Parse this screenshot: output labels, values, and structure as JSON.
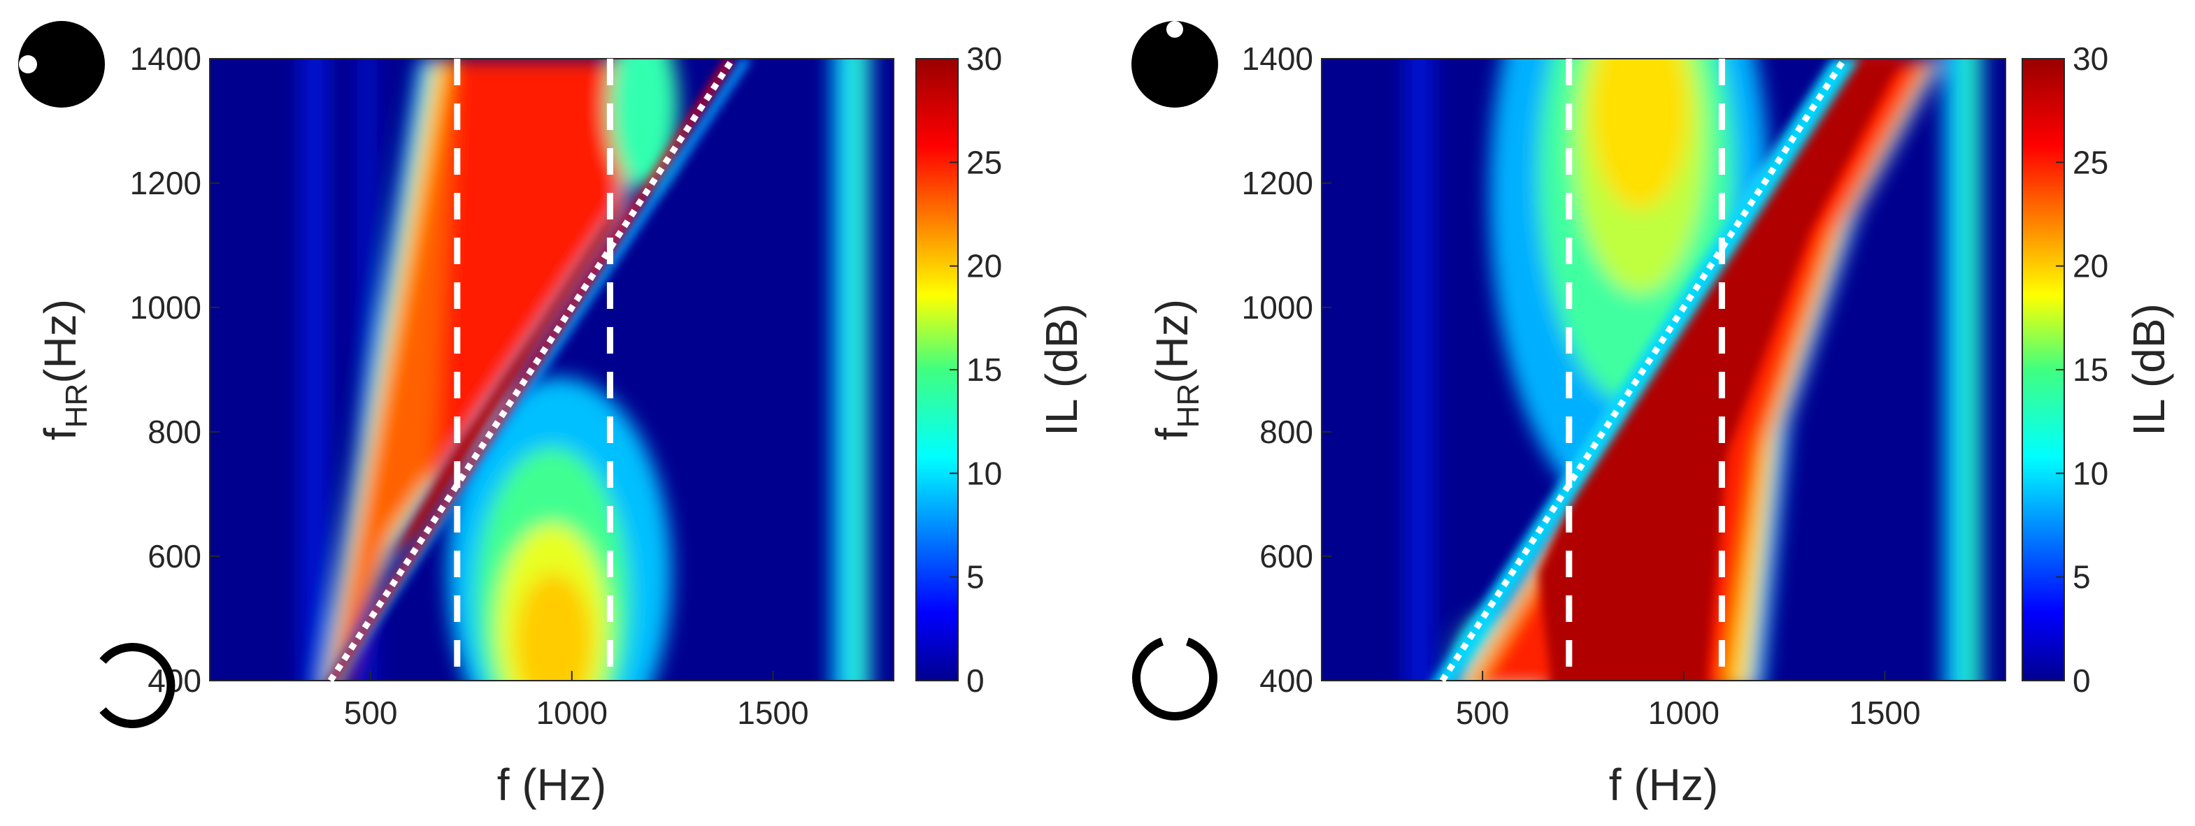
{
  "chart_data": [
    {
      "type": "heatmap",
      "xlabel": "f (Hz)",
      "ylabel_main": "f",
      "ylabel_sub": "HR",
      "ylabel_unit": "(Hz)",
      "xlim": [
        100,
        1800
      ],
      "ylim": [
        400,
        1400
      ],
      "xticks": [
        500,
        1000,
        1500
      ],
      "yticks": [
        400,
        600,
        800,
        1000,
        1200,
        1400
      ],
      "colorbar": {
        "label": "IL (dB)",
        "range": [
          0,
          30
        ],
        "ticks": [
          0,
          5,
          10,
          15,
          20,
          25,
          30
        ]
      },
      "vertical_dashed_lines_x": [
        715,
        1095
      ],
      "diagonal_dotted_line": {
        "from": [
          400,
          400
        ],
        "to": [
          1400,
          1400
        ]
      },
      "features": [
        {
          "name": "high IL wedge above diagonal",
          "approx_il": 30
        },
        {
          "name": "local IL maximum near f=960 Hz, fHR=460 Hz",
          "approx_il": 20
        }
      ],
      "insets": {
        "top": "filled disk with notch on left",
        "bottom": "ring with gap on right"
      }
    },
    {
      "type": "heatmap",
      "xlabel": "f (Hz)",
      "ylabel_main": "f",
      "ylabel_sub": "HR",
      "ylabel_unit": "(Hz)",
      "xlim": [
        100,
        1800
      ],
      "ylim": [
        400,
        1400
      ],
      "xticks": [
        500,
        1000,
        1500
      ],
      "yticks": [
        400,
        600,
        800,
        1000,
        1200,
        1400
      ],
      "colorbar": {
        "label": "IL (dB)",
        "range": [
          0,
          30
        ],
        "ticks": [
          0,
          5,
          10,
          15,
          20,
          25,
          30
        ]
      },
      "vertical_dashed_lines_x": [
        715,
        1095
      ],
      "diagonal_dotted_line": {
        "from": [
          400,
          400
        ],
        "to": [
          1400,
          1400
        ]
      },
      "features": [
        {
          "name": "high IL band below diagonal",
          "approx_il": 30
        },
        {
          "name": "local IL maximum near f=830 Hz, fHR=1300 Hz",
          "approx_il": 20
        }
      ],
      "insets": {
        "top": "filled disk with notch on top",
        "bottom": "ring with gap on top"
      }
    }
  ]
}
